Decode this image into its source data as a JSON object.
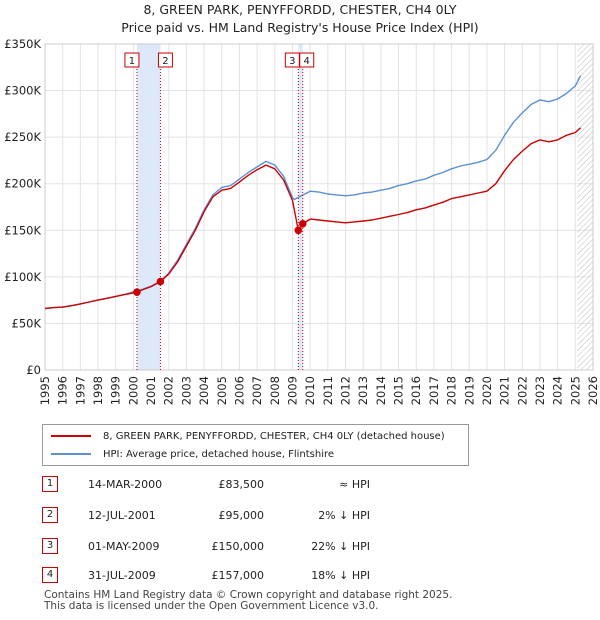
{
  "title_line1": "8, GREEN PARK, PENYFFORDD, CHESTER, CH4 0LY",
  "title_line2": "Price paid vs. HM Land Registry's House Price Index (HPI)",
  "chart_data": {
    "type": "line",
    "x_range": [
      1995,
      2026
    ],
    "ylim": [
      0,
      350000
    ],
    "y_ticks": [
      {
        "value": 0,
        "label": "£0"
      },
      {
        "value": 50000,
        "label": "£50K"
      },
      {
        "value": 100000,
        "label": "£100K"
      },
      {
        "value": 150000,
        "label": "£150K"
      },
      {
        "value": 200000,
        "label": "£200K"
      },
      {
        "value": 250000,
        "label": "£250K"
      },
      {
        "value": 300000,
        "label": "£300K"
      },
      {
        "value": 350000,
        "label": "£350K"
      }
    ],
    "x_ticks": [
      "1995",
      "1996",
      "1997",
      "1998",
      "1999",
      "2000",
      "2001",
      "2002",
      "2003",
      "2004",
      "2005",
      "2006",
      "2007",
      "2008",
      "2009",
      "2010",
      "2011",
      "2012",
      "2013",
      "2014",
      "2015",
      "2016",
      "2017",
      "2018",
      "2019",
      "2020",
      "2021",
      "2022",
      "2023",
      "2024",
      "2025",
      "2026"
    ],
    "grid": true,
    "hatched_from": 2025.1,
    "series": [
      {
        "name": "HPI: Average price, detached house, Flintshire",
        "color": "#5b8fd6",
        "x": [
          1995,
          1995.5,
          1996,
          1996.5,
          1997,
          1997.5,
          1998,
          1998.5,
          1999,
          1999.5,
          2000,
          2000.5,
          2001,
          2001.5,
          2002,
          2002.5,
          2003,
          2003.5,
          2004,
          2004.5,
          2005,
          2005.5,
          2006,
          2006.5,
          2007,
          2007.5,
          2008,
          2008.5,
          2009,
          2009.1,
          2009.5,
          2010,
          2010.5,
          2011,
          2011.5,
          2012,
          2012.5,
          2013,
          2013.5,
          2014,
          2014.5,
          2015,
          2015.5,
          2016,
          2016.5,
          2017,
          2017.5,
          2018,
          2018.5,
          2019,
          2019.5,
          2020,
          2020.5,
          2021,
          2021.5,
          2022,
          2022.5,
          2023,
          2023.5,
          2024,
          2024.5,
          2025,
          2025.3
        ],
        "values": [
          66000,
          67000,
          67500,
          69000,
          71000,
          73000,
          75000,
          77000,
          79000,
          81000,
          84000,
          86500,
          90000,
          95000,
          104000,
          118000,
          135000,
          152000,
          172000,
          188000,
          196000,
          198000,
          205000,
          212000,
          218000,
          224000,
          220000,
          208000,
          185000,
          183000,
          187000,
          192000,
          191000,
          189000,
          188000,
          187000,
          188000,
          190000,
          191000,
          193000,
          195000,
          198000,
          200000,
          203000,
          205000,
          209000,
          212000,
          216000,
          219000,
          221000,
          223000,
          226000,
          236000,
          252000,
          266000,
          276000,
          285000,
          290000,
          288000,
          291000,
          297000,
          305000,
          316000
        ]
      },
      {
        "name": "8, GREEN PARK, PENYFFORDD, CHESTER, CH4 0LY (detached house)",
        "color": "#cc0000",
        "x": [
          1995,
          1995.5,
          1996,
          1996.5,
          1997,
          1997.5,
          1998,
          1998.5,
          1999,
          1999.5,
          2000.2,
          2000.5,
          2001,
          2001.53,
          2002,
          2002.5,
          2003,
          2003.5,
          2004,
          2004.5,
          2005,
          2005.5,
          2006,
          2006.5,
          2007,
          2007.5,
          2008,
          2008.5,
          2009,
          2009.33,
          2009.58,
          2010,
          2010.5,
          2011,
          2011.5,
          2012,
          2012.5,
          2013,
          2013.5,
          2014,
          2014.5,
          2015,
          2015.5,
          2016,
          2016.5,
          2017,
          2017.5,
          2018,
          2018.5,
          2019,
          2019.5,
          2020,
          2020.5,
          2021,
          2021.5,
          2022,
          2022.5,
          2023,
          2023.5,
          2024,
          2024.5,
          2025,
          2025.3
        ],
        "values": [
          66000,
          67000,
          67500,
          69000,
          71000,
          73000,
          75000,
          77000,
          79000,
          81000,
          83500,
          86000,
          89500,
          95000,
          103000,
          116000,
          133000,
          150000,
          170000,
          186000,
          193000,
          195000,
          202000,
          209000,
          215000,
          220000,
          216000,
          204000,
          182000,
          150000,
          157000,
          162000,
          161000,
          160000,
          159000,
          158000,
          159000,
          160000,
          161000,
          163000,
          165000,
          167000,
          169000,
          172000,
          174000,
          177000,
          180000,
          184000,
          186000,
          188000,
          190000,
          192000,
          200000,
          214000,
          226000,
          235000,
          243000,
          247000,
          245000,
          247000,
          252000,
          255000,
          260000
        ]
      }
    ],
    "transactions": [
      {
        "label": "1",
        "x": 2000.2,
        "value": 83500
      },
      {
        "label": "2",
        "x": 2001.53,
        "value": 95000
      },
      {
        "label": "3",
        "x": 2009.33,
        "value": 150000
      },
      {
        "label": "4",
        "x": 2009.58,
        "value": 157000
      }
    ]
  },
  "legend": {
    "property": "8, GREEN PARK, PENYFFORDD, CHESTER, CH4 0LY (detached house)",
    "hpi": "HPI: Average price, detached house, Flintshire"
  },
  "transactions_table": [
    {
      "num": "1",
      "date": "14-MAR-2000",
      "price": "£83,500",
      "hpi": "≈ HPI"
    },
    {
      "num": "2",
      "date": "12-JUL-2001",
      "price": "£95,000",
      "hpi": "2% ↓ HPI"
    },
    {
      "num": "3",
      "date": "01-MAY-2009",
      "price": "£150,000",
      "hpi": "22% ↓ HPI"
    },
    {
      "num": "4",
      "date": "31-JUL-2009",
      "price": "£157,000",
      "hpi": "18% ↓ HPI"
    }
  ],
  "footer_line1": "Contains HM Land Registry data © Crown copyright and database right 2025.",
  "footer_line2": "This data is licensed under the Open Government Licence v3.0.",
  "colors": {
    "property": "#cc0000",
    "hpi": "#5b8fd6",
    "band": "#dde8f8"
  }
}
